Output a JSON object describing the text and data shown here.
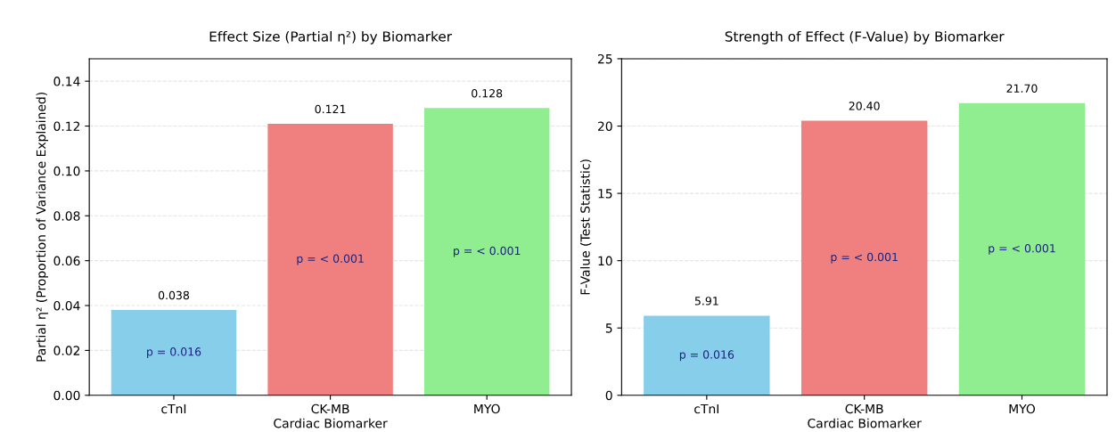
{
  "chart_data": [
    {
      "type": "bar",
      "title": "Effect Size (Partial η²) by Biomarker",
      "xlabel": "Cardiac Biomarker",
      "ylabel": "Partial η² (Proportion of Variance Explained)",
      "categories": [
        "cTnI",
        "CK-MB",
        "MYO"
      ],
      "values": [
        0.038,
        0.121,
        0.128
      ],
      "colors": [
        "#87ceeb",
        "#f08080",
        "#90ee90"
      ],
      "value_labels": [
        "0.038",
        "0.121",
        "0.128"
      ],
      "ylim": [
        0,
        0.15
      ],
      "yticks": [
        {
          "value": 0,
          "label": "0.00"
        },
        {
          "value": 0.02,
          "label": "0.02"
        },
        {
          "value": 0.04,
          "label": "0.04"
        },
        {
          "value": 0.06,
          "label": "0.06"
        },
        {
          "value": 0.08,
          "label": "0.08"
        },
        {
          "value": 0.1,
          "label": "0.10"
        },
        {
          "value": 0.12,
          "label": "0.12"
        },
        {
          "value": 0.14,
          "label": "0.14"
        }
      ],
      "grid": "y",
      "line_style": "dashed",
      "annotations": [
        "p = 0.016",
        "p = < 0.001",
        "p = < 0.001"
      ]
    },
    {
      "type": "bar",
      "title": "Strength of Effect (F-Value) by Biomarker",
      "xlabel": "Cardiac Biomarker",
      "ylabel": "F-Value (Test Statistic)",
      "categories": [
        "cTnI",
        "CK-MB",
        "MYO"
      ],
      "values": [
        5.91,
        20.4,
        21.7
      ],
      "colors": [
        "#87ceeb",
        "#f08080",
        "#90ee90"
      ],
      "value_labels": [
        "5.91",
        "20.40",
        "21.70"
      ],
      "ylim": [
        0,
        25
      ],
      "yticks": [
        0,
        5,
        10,
        15,
        20,
        25
      ],
      "grid": "y",
      "line_style": "dashed",
      "annotations": [
        "p = 0.016",
        "p = < 0.001",
        "p = < 0.001"
      ]
    }
  ]
}
